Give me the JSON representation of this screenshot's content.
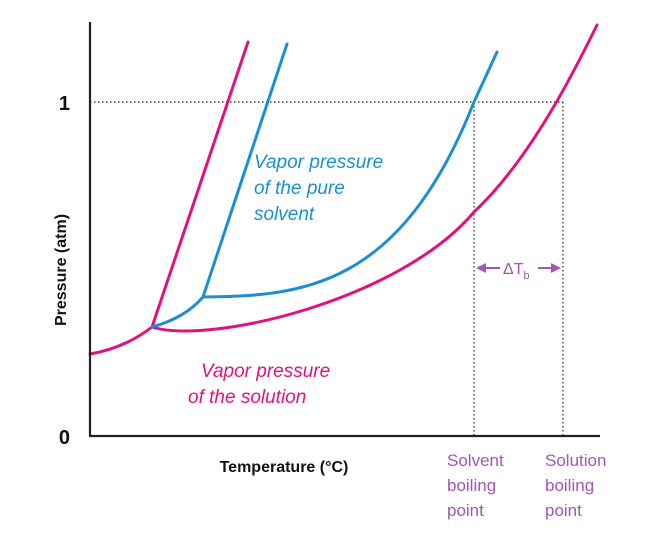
{
  "figure": {
    "axes": {
      "y_label": "Pressure (atm)",
      "x_label": "Temperature (°C)",
      "y_tick_top": "1",
      "y_tick_bottom": "0"
    },
    "labels": {
      "solvent_curve": [
        "Vapor pressure",
        "of the pure",
        "solvent"
      ],
      "solution_curve": [
        "Vapor pressure",
        "of the solution"
      ],
      "delta_tb_main": "ΔT",
      "delta_tb_sub": "b",
      "solvent_bp": [
        "Solvent",
        "boiling",
        "point"
      ],
      "solution_bp": [
        "Solution",
        "boiling",
        "point"
      ]
    },
    "colors": {
      "solvent": "#1b8fd2",
      "solution": "#e0127d",
      "annotation": "#a355b5",
      "axis": "#222222",
      "guide": "#444444"
    }
  }
}
